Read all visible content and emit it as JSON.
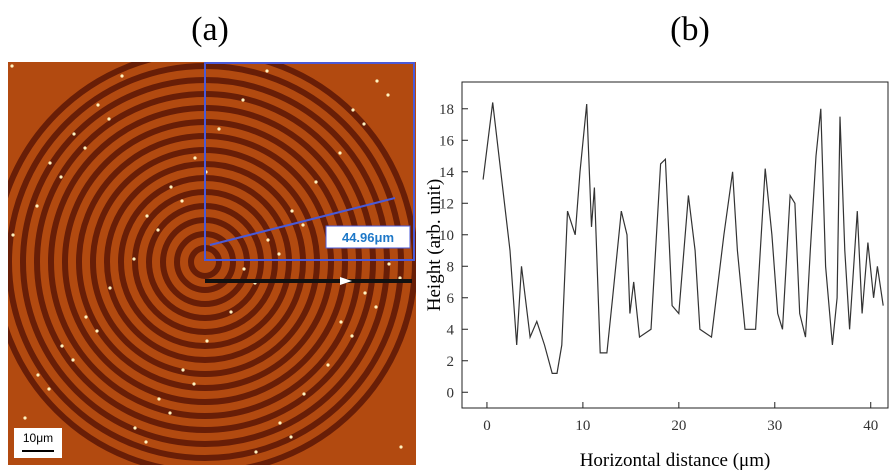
{
  "panels": {
    "a": {
      "label": "(a)",
      "scale_bar": "10μm",
      "annotation": "44.96μm"
    },
    "b": {
      "label": "(b)"
    }
  },
  "chart_data": {
    "type": "line",
    "xlabel": "Horizontal distance (μm)",
    "ylabel": "Height (arb. unit)",
    "x": [
      -0.4,
      0.6,
      2.4,
      3.1,
      3.6,
      4.5,
      5.2,
      6,
      6.8,
      7.3,
      7.8,
      8.4,
      9.2,
      9.7,
      10.4,
      10.9,
      11.2,
      11.8,
      12.5,
      13.1,
      14,
      14.6,
      14.9,
      15.3,
      15.9,
      17.1,
      18.1,
      18.6,
      19.3,
      20,
      21,
      21.7,
      22.2,
      23.4,
      24.7,
      25.6,
      26.1,
      26.9,
      28,
      29,
      29.7,
      30.3,
      30.8,
      31.6,
      32.1,
      32.6,
      33.2,
      33.7,
      34.3,
      34.8,
      35.3,
      36,
      36.5,
      36.8,
      37.3,
      37.8,
      38.6,
      39.1,
      39.7,
      40.3,
      40.7,
      41.3
    ],
    "values": [
      13.5,
      18.4,
      9,
      3,
      8,
      3.5,
      4.5,
      3,
      1.2,
      1.2,
      3,
      11.5,
      10,
      14,
      18.3,
      10.5,
      13,
      2.5,
      2.5,
      6,
      11.5,
      10,
      5,
      7,
      3.5,
      4,
      14.5,
      14.8,
      5.5,
      5,
      12.5,
      9,
      4,
      3.5,
      10,
      14,
      9,
      4,
      4,
      14.2,
      10,
      5,
      4,
      12.5,
      12,
      5,
      3.5,
      9,
      15,
      18,
      8,
      3,
      6,
      17.5,
      9,
      4,
      11.5,
      5,
      9.5,
      6,
      8,
      5.5
    ],
    "color": "#333333",
    "xlim": [
      -2.6,
      41.8
    ],
    "xticks": [
      0,
      10,
      20,
      30,
      40
    ],
    "ylim": [
      -1,
      19.7
    ],
    "yticks": [
      0,
      2,
      4,
      6,
      8,
      10,
      12,
      14,
      16,
      18
    ]
  }
}
